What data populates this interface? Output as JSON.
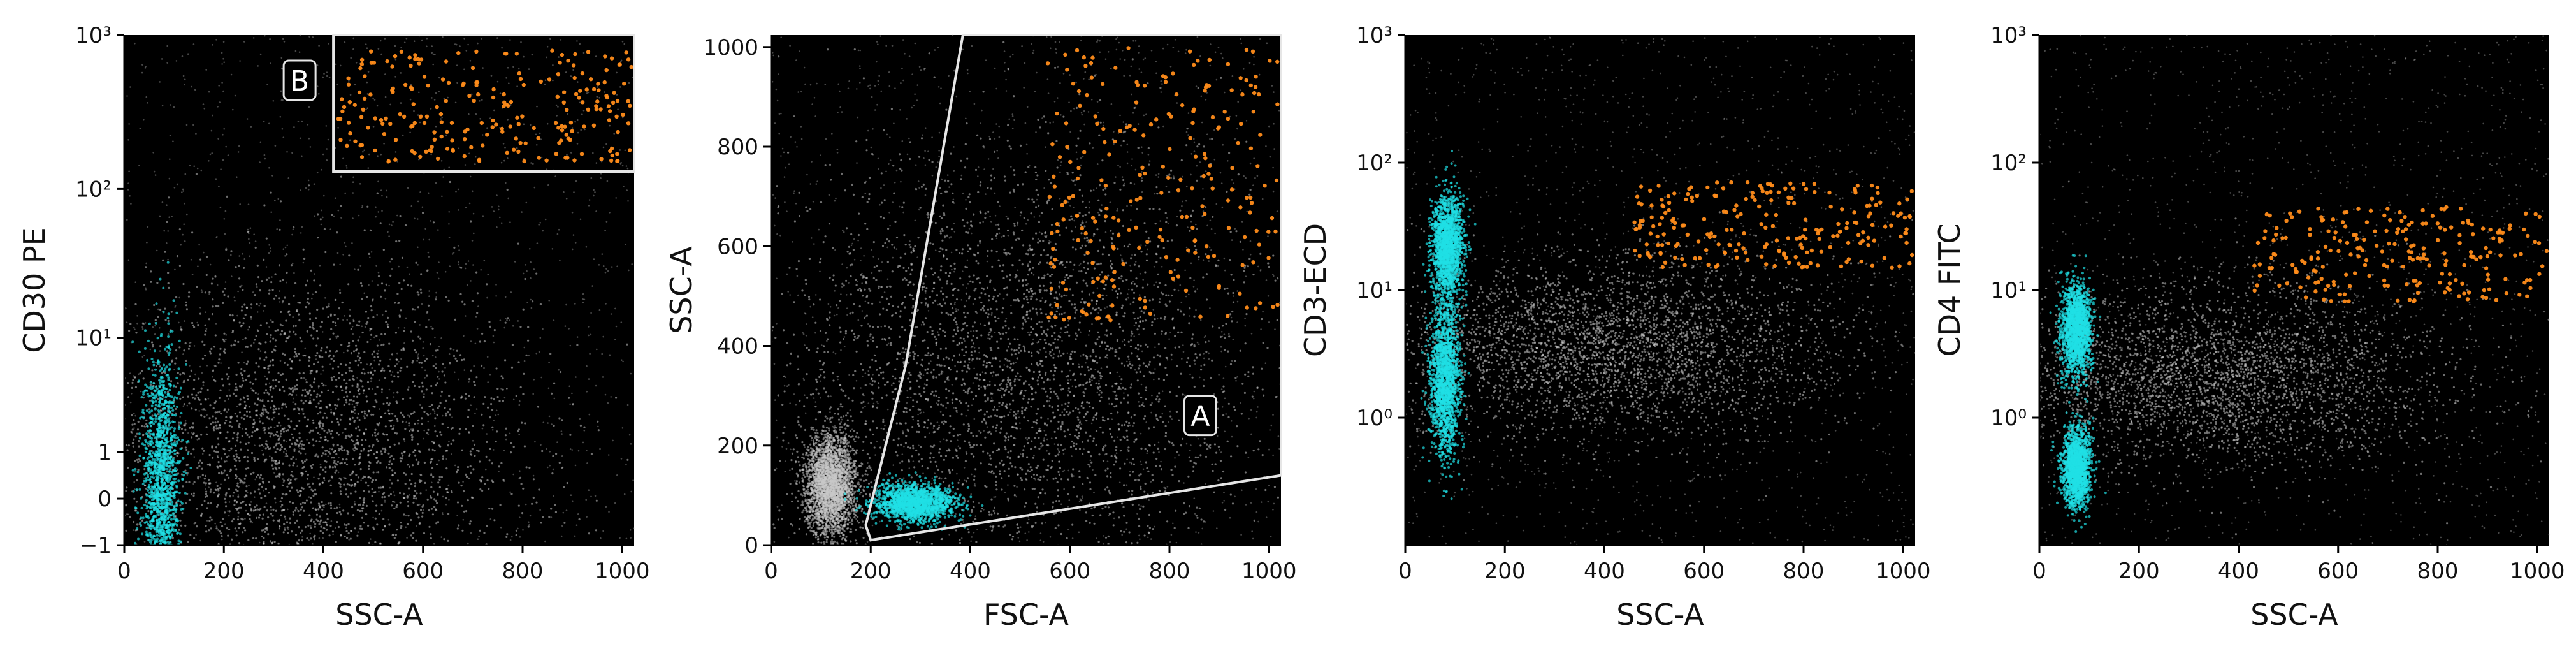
{
  "colors": {
    "background": "#000000",
    "events_gray": "#c8c8c8",
    "events_cyan": "#1fe0e6",
    "events_orange": "#ff8c1a",
    "gate": "#e6e6e6"
  },
  "chart_data": [
    {
      "type": "scatter",
      "xlabel": "SSC-A",
      "ylabel": "CD30 PE",
      "x_scale": "linear",
      "y_scale": "biexponential",
      "xlim": [
        0,
        1024
      ],
      "ylim": [
        -1,
        1000
      ],
      "x_ticks": [
        0,
        200,
        400,
        600,
        800,
        1000
      ],
      "x_tick_labels": [
        "0",
        "200",
        "400",
        "600",
        "800",
        "1000"
      ],
      "y_ticks": [
        -1,
        0,
        1,
        10,
        100,
        1000
      ],
      "y_tick_labels": [
        "−1",
        "0",
        "1",
        "10¹",
        "10²",
        "10³"
      ],
      "gate": {
        "label": "B",
        "shape": "rectangle",
        "x_range": [
          420,
          1024
        ],
        "y_range": [
          130,
          1000
        ]
      },
      "populations": [
        {
          "color": "gray",
          "description": "main scatter cloud",
          "x_center": 350,
          "y_center": 1.0,
          "x_spread": 230,
          "y_spread": 0.6
        },
        {
          "color": "cyan",
          "description": "low SSC cluster",
          "x_center": 75,
          "y_center": 0.1,
          "x_spread": 18,
          "y_spread": 0.45
        },
        {
          "color": "orange",
          "description": "gate B events",
          "x_range": [
            430,
            1020
          ],
          "y_range": [
            150,
            800
          ]
        }
      ]
    },
    {
      "type": "scatter",
      "xlabel": "FSC-A",
      "ylabel": "SSC-A",
      "x_scale": "linear",
      "y_scale": "linear",
      "xlim": [
        0,
        1024
      ],
      "ylim": [
        0,
        1024
      ],
      "x_ticks": [
        0,
        200,
        400,
        600,
        800,
        1000
      ],
      "x_tick_labels": [
        "0",
        "200",
        "400",
        "600",
        "800",
        "1000"
      ],
      "y_ticks": [
        0,
        200,
        400,
        600,
        800,
        1000
      ],
      "y_tick_labels": [
        "0",
        "200",
        "400",
        "600",
        "800",
        "1000"
      ],
      "gate": {
        "label": "A",
        "shape": "polygon",
        "vertices": [
          [
            190,
            40
          ],
          [
            200,
            10
          ],
          [
            1024,
            140
          ],
          [
            1024,
            1024
          ],
          [
            385,
            1024
          ],
          [
            270,
            360
          ],
          [
            190,
            40
          ]
        ]
      },
      "populations": [
        {
          "color": "gray",
          "description": "debris near origin",
          "x_center": 120,
          "y_center": 120,
          "x_spread": 25,
          "y_spread": 50
        },
        {
          "color": "gray",
          "description": "main scatter cloud",
          "x_center": 500,
          "y_center": 350,
          "x_spread": 250,
          "y_spread": 220
        },
        {
          "color": "cyan",
          "description": "lymphocyte cluster",
          "x_center": 290,
          "y_center": 85,
          "x_spread": 40,
          "y_spread": 18
        },
        {
          "color": "orange",
          "description": "gate B events",
          "x_range": [
            550,
            1020
          ],
          "y_range": [
            450,
            1000
          ]
        }
      ]
    },
    {
      "type": "scatter",
      "xlabel": "SSC-A",
      "ylabel": "CD3-ECD",
      "x_scale": "linear",
      "y_scale": "log",
      "xlim": [
        0,
        1024
      ],
      "ylim": [
        0.1,
        1000
      ],
      "x_ticks": [
        0,
        200,
        400,
        600,
        800,
        1000
      ],
      "x_tick_labels": [
        "0",
        "200",
        "400",
        "600",
        "800",
        "1000"
      ],
      "y_ticks": [
        1,
        10,
        100,
        1000
      ],
      "y_tick_labels": [
        "10⁰",
        "10¹",
        "10²",
        "10³"
      ],
      "populations": [
        {
          "color": "gray",
          "description": "main scatter cloud",
          "x_center": 400,
          "y_center": 3.5,
          "x_spread": 230,
          "y_spread_decades": 0.35
        },
        {
          "color": "cyan",
          "description": "CD3 bright cluster",
          "x_center": 85,
          "y_center": 22,
          "x_spread": 15,
          "y_spread_decades": 0.2
        },
        {
          "color": "cyan",
          "description": "CD3 dim cluster",
          "x_center": 80,
          "y_center": 2,
          "x_spread": 15,
          "y_spread_decades": 0.3
        },
        {
          "color": "orange",
          "description": "gate B events",
          "x_range": [
            460,
            1020
          ],
          "y_range": [
            15,
            70
          ]
        }
      ]
    },
    {
      "type": "scatter",
      "xlabel": "SSC-A",
      "ylabel": "CD4 FITC",
      "x_scale": "linear",
      "y_scale": "log",
      "xlim": [
        0,
        1024
      ],
      "ylim": [
        0.1,
        1000
      ],
      "x_ticks": [
        0,
        200,
        400,
        600,
        800,
        1000
      ],
      "x_tick_labels": [
        "0",
        "200",
        "400",
        "600",
        "800",
        "1000"
      ],
      "y_ticks": [
        1,
        10,
        100,
        1000
      ],
      "y_tick_labels": [
        "10⁰",
        "10¹",
        "10²",
        "10³"
      ],
      "populations": [
        {
          "color": "gray",
          "description": "main scatter cloud",
          "x_center": 350,
          "y_center": 2,
          "x_spread": 230,
          "y_spread_decades": 0.35
        },
        {
          "color": "cyan",
          "description": "CD4 positive cluster",
          "x_center": 75,
          "y_center": 5,
          "x_spread": 15,
          "y_spread_decades": 0.18
        },
        {
          "color": "cyan",
          "description": "CD4 negative cluster",
          "x_center": 75,
          "y_center": 0.4,
          "x_spread": 14,
          "y_spread_decades": 0.15
        },
        {
          "color": "orange",
          "description": "gate B events",
          "x_range": [
            430,
            1020
          ],
          "y_range": [
            8,
            45
          ]
        }
      ]
    }
  ]
}
